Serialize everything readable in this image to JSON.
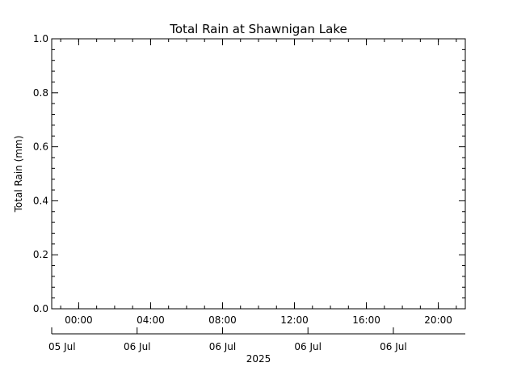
{
  "chart_data": {
    "type": "line",
    "title": "Total Rain at Shawnigan Lake",
    "ylabel": "Total Rain (mm)",
    "xlabel": "",
    "ylim": [
      0.0,
      1.0
    ],
    "y_ticks": [
      "0.0",
      "0.2",
      "0.4",
      "0.6",
      "0.8",
      "1.0"
    ],
    "x_range": [
      "2025-07-05T22:30",
      "2025-07-06T21:30"
    ],
    "x_time_ticks": [
      {
        "at": "2025-07-06T00:00",
        "label": "00:00"
      },
      {
        "at": "2025-07-06T04:00",
        "label": "04:00"
      },
      {
        "at": "2025-07-06T08:00",
        "label": "08:00"
      },
      {
        "at": "2025-07-06T12:00",
        "label": "12:00"
      },
      {
        "at": "2025-07-06T16:00",
        "label": "16:00"
      },
      {
        "at": "2025-07-06T20:00",
        "label": "20:00"
      }
    ],
    "x_date_ticks": [
      {
        "at": "2025-07-05T22:30",
        "label": "05 Jul"
      },
      {
        "at": "2025-07-06T03:15",
        "label": "06 Jul"
      },
      {
        "at": "2025-07-06T08:00",
        "label": "06 Jul"
      },
      {
        "at": "2025-07-06T12:45",
        "label": "06 Jul"
      },
      {
        "at": "2025-07-06T17:30",
        "label": "06 Jul"
      }
    ],
    "year_label": "2025",
    "series": [
      {
        "values": []
      }
    ],
    "colors": {
      "axis": "#000000",
      "background": "#ffffff"
    }
  }
}
